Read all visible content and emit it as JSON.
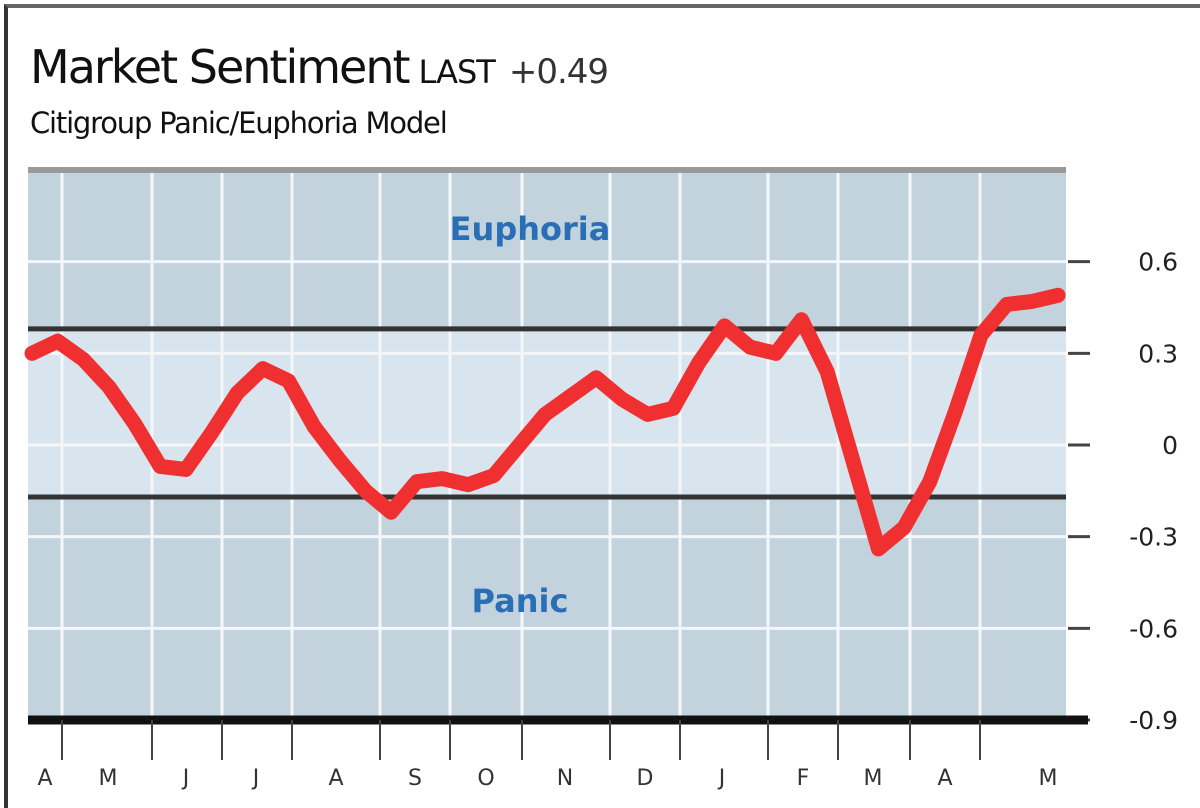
{
  "chart_data": {
    "type": "line",
    "title": "Market Sentiment",
    "last_label": "LAST",
    "last_value": "+0.49",
    "subtitle": "Citigroup Panic/Euphoria Model",
    "zone_labels": {
      "upper": "Euphoria",
      "lower": "Panic"
    },
    "thresholds": {
      "euphoria": 0.38,
      "panic": -0.17
    },
    "x_tick_labels": [
      "A",
      "M",
      "J",
      "J",
      "A",
      "S",
      "O",
      "N",
      "D",
      "J",
      "F",
      "M",
      "A",
      "M"
    ],
    "y_ticks": [
      0.6,
      0.3,
      0,
      -0.3,
      -0.6,
      -0.9
    ],
    "y_tick_labels": [
      "0.6",
      "0.3",
      "0",
      "-0.3",
      "-0.6",
      "-0.9"
    ],
    "ylim": [
      -0.9,
      0.9
    ],
    "grid": true,
    "series": [
      {
        "color": "#f03030",
        "values": [
          0.3,
          0.34,
          0.28,
          0.19,
          0.07,
          -0.07,
          -0.08,
          0.04,
          0.17,
          0.25,
          0.21,
          0.06,
          -0.05,
          -0.15,
          -0.22,
          -0.12,
          -0.11,
          -0.13,
          -0.1,
          0.0,
          0.1,
          0.16,
          0.22,
          0.15,
          0.1,
          0.12,
          0.27,
          0.39,
          0.32,
          0.3,
          0.41,
          0.24,
          -0.05,
          -0.34,
          -0.27,
          -0.12,
          0.11,
          0.36,
          0.46,
          0.47,
          0.49
        ]
      }
    ],
    "colors": {
      "outer_band": "#c3d3dd",
      "inner_band": "#d8e5ee",
      "threshold_line": "#333333",
      "zone_text": "#2a6fb5"
    }
  }
}
